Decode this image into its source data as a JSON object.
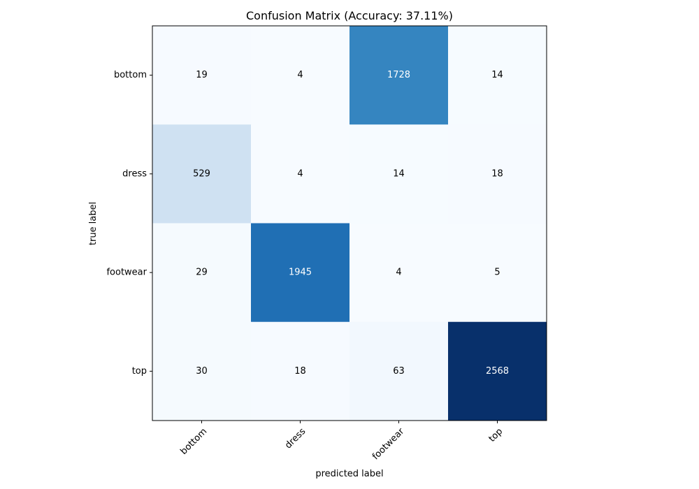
{
  "chart_data": {
    "type": "heatmap",
    "title": "Confusion Matrix (Accuracy: 37.11%)",
    "xlabel": "predicted label",
    "ylabel": "true label",
    "x_categories": [
      "bottom",
      "dress",
      "footwear",
      "top"
    ],
    "y_categories": [
      "bottom",
      "dress",
      "footwear",
      "top"
    ],
    "values": [
      [
        19,
        4,
        1728,
        14
      ],
      [
        529,
        4,
        14,
        18
      ],
      [
        29,
        1945,
        4,
        5
      ],
      [
        30,
        18,
        63,
        2568
      ]
    ],
    "colormap": "Blues",
    "color_low": "#f7fbff",
    "color_high": "#08306b",
    "text_dark": "#000000",
    "text_light": "#ffffff",
    "grid": false
  }
}
